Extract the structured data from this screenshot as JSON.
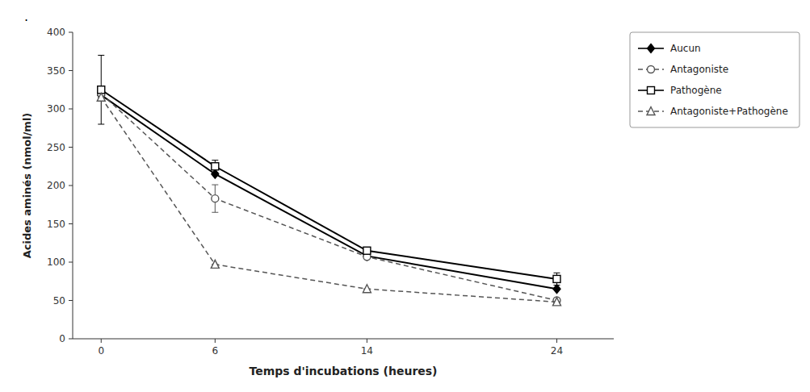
{
  "chart_data": {
    "type": "line",
    "annotations": [
      "."
    ],
    "x": [
      0,
      6,
      14,
      24
    ],
    "series": [
      {
        "name": "Aucun",
        "color": "#000000",
        "values": [
          318,
          215,
          108,
          65
        ],
        "error": [
          0,
          0,
          0,
          0
        ],
        "marker": "filled-diamond",
        "line_style": "solid"
      },
      {
        "name": "Antagoniste",
        "color": "#555555",
        "values": [
          320,
          183,
          107,
          50
        ],
        "error": [
          0,
          18,
          0,
          0
        ],
        "marker": "open-circle",
        "line_style": "dashed"
      },
      {
        "name": "Pathogène",
        "color": "#000000",
        "values": [
          325,
          225,
          115,
          78
        ],
        "error": [
          45,
          8,
          0,
          8
        ],
        "marker": "open-square",
        "line_style": "solid"
      },
      {
        "name": "Antagoniste+Pathogène",
        "color": "#555555",
        "values": [
          315,
          97,
          65,
          48
        ],
        "error": [
          0,
          0,
          0,
          0
        ],
        "marker": "open-triangle",
        "line_style": "dashed"
      }
    ],
    "xlabel": "Temps d'incubations (heures)",
    "ylabel": "Acides aminés (nmol/ml)",
    "xlim": [
      -1.5,
      27
    ],
    "ylim": [
      0,
      400
    ],
    "xticks": [
      0,
      6,
      14,
      24
    ],
    "yticks": [
      0,
      50,
      100,
      150,
      200,
      250,
      300,
      350,
      400
    ],
    "grid": false,
    "legend": "right"
  }
}
